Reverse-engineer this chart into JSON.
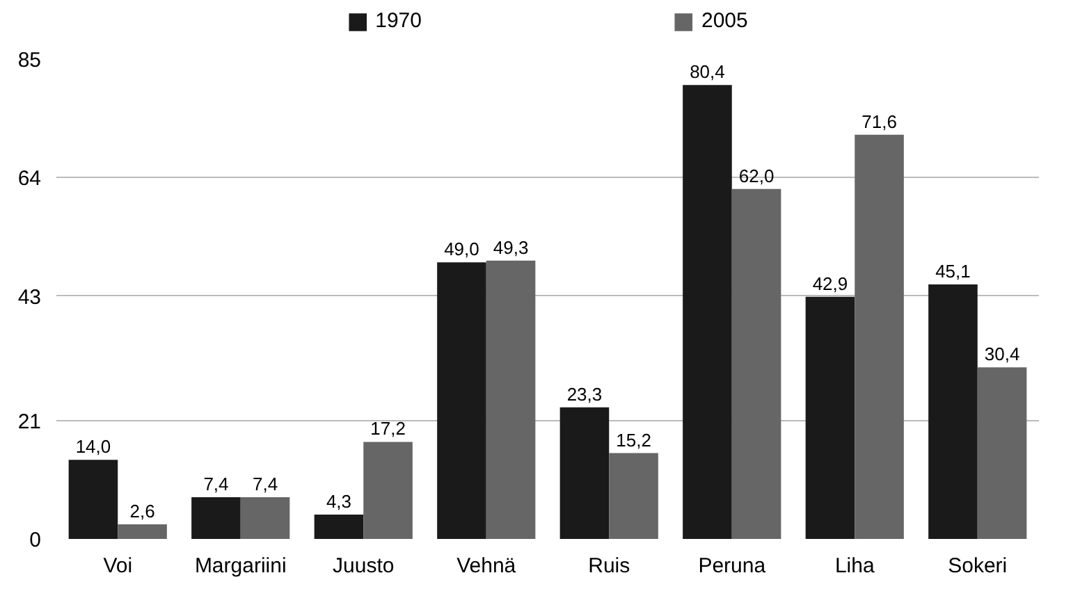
{
  "chart_data": {
    "type": "bar",
    "categories": [
      "Voi",
      "Margariini",
      "Juusto",
      "Vehnä",
      "Ruis",
      "Peruna",
      "Liha",
      "Sokeri"
    ],
    "series": [
      {
        "name": "1970",
        "color": "#1a1a1a",
        "values": [
          14.0,
          7.4,
          4.3,
          49.0,
          23.3,
          80.4,
          42.9,
          45.1
        ],
        "value_labels": [
          "14,0",
          "7,4",
          "4,3",
          "49,0",
          "23,3",
          "80,4",
          "42,9",
          "45,1"
        ]
      },
      {
        "name": "2005",
        "color": "#666666",
        "values": [
          2.6,
          7.4,
          17.2,
          49.3,
          15.2,
          62.0,
          71.6,
          30.4
        ],
        "value_labels": [
          "2,6",
          "7,4",
          "17,2",
          "49,3",
          "15,2",
          "62,0",
          "71,6",
          "30,4"
        ]
      }
    ],
    "ylim": [
      0,
      85
    ],
    "yticks": [
      0,
      21,
      43,
      64,
      85
    ],
    "grid": "y",
    "legend": "top"
  }
}
